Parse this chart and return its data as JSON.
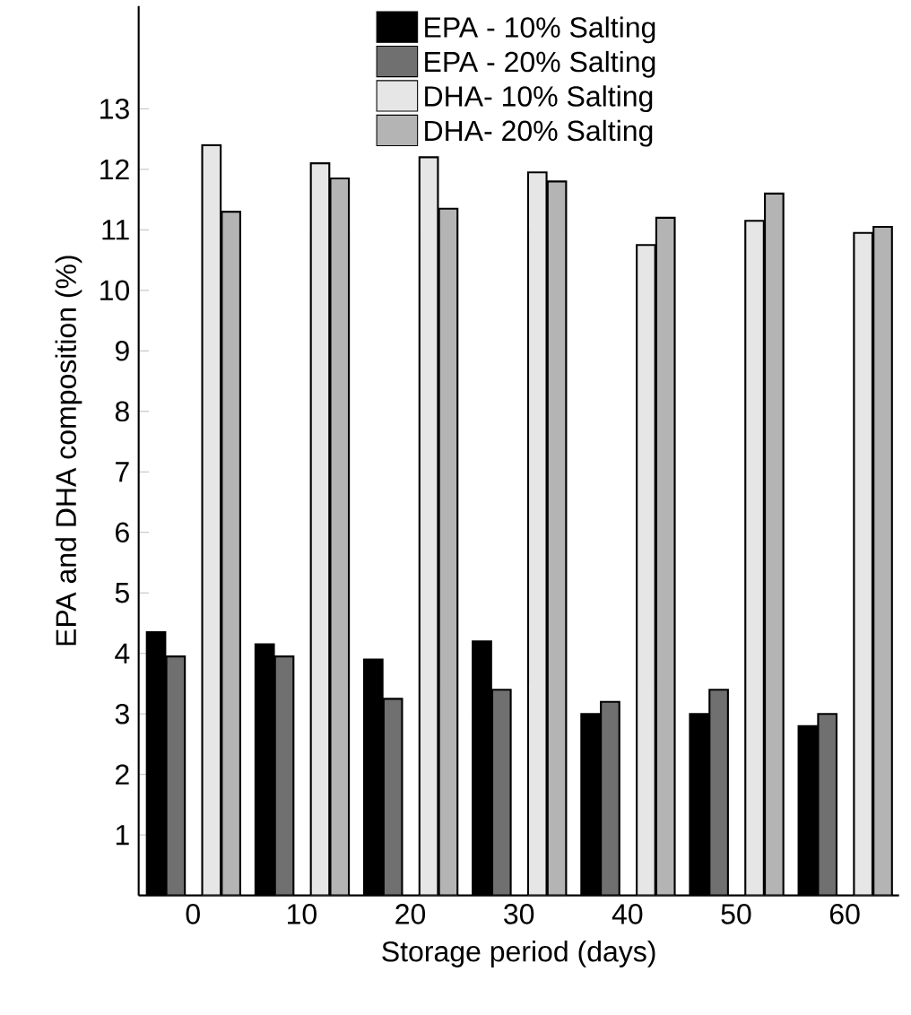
{
  "chart_data": {
    "type": "bar",
    "xlabel": "Storage period (days)",
    "ylabel": "EPA and DHA composition (%)",
    "categories": [
      "0",
      "10",
      "20",
      "30",
      "40",
      "50",
      "60"
    ],
    "series": [
      {
        "name": "EPA - 10% Salting",
        "color": "#000000",
        "values": [
          4.35,
          4.15,
          3.9,
          4.2,
          3.0,
          3.0,
          2.8
        ]
      },
      {
        "name": "EPA - 20% Salting",
        "color": "#707070",
        "values": [
          3.95,
          3.95,
          3.25,
          3.4,
          3.2,
          3.4,
          3.0
        ]
      },
      {
        "name": "DHA- 10% Salting",
        "color": "#e6e6e6",
        "values": [
          12.4,
          12.1,
          12.2,
          11.95,
          10.75,
          11.15,
          10.95
        ]
      },
      {
        "name": "DHA- 20% Salting",
        "color": "#b4b4b4",
        "values": [
          11.3,
          11.85,
          11.35,
          11.8,
          11.2,
          11.6,
          11.05
        ]
      }
    ],
    "ylim": [
      0,
      14.7
    ],
    "yticks": [
      {
        "value": 0,
        "label": null
      },
      1,
      2,
      3,
      4,
      5,
      6,
      7,
      8,
      9,
      10,
      11,
      12,
      13
    ],
    "legend": "top"
  }
}
